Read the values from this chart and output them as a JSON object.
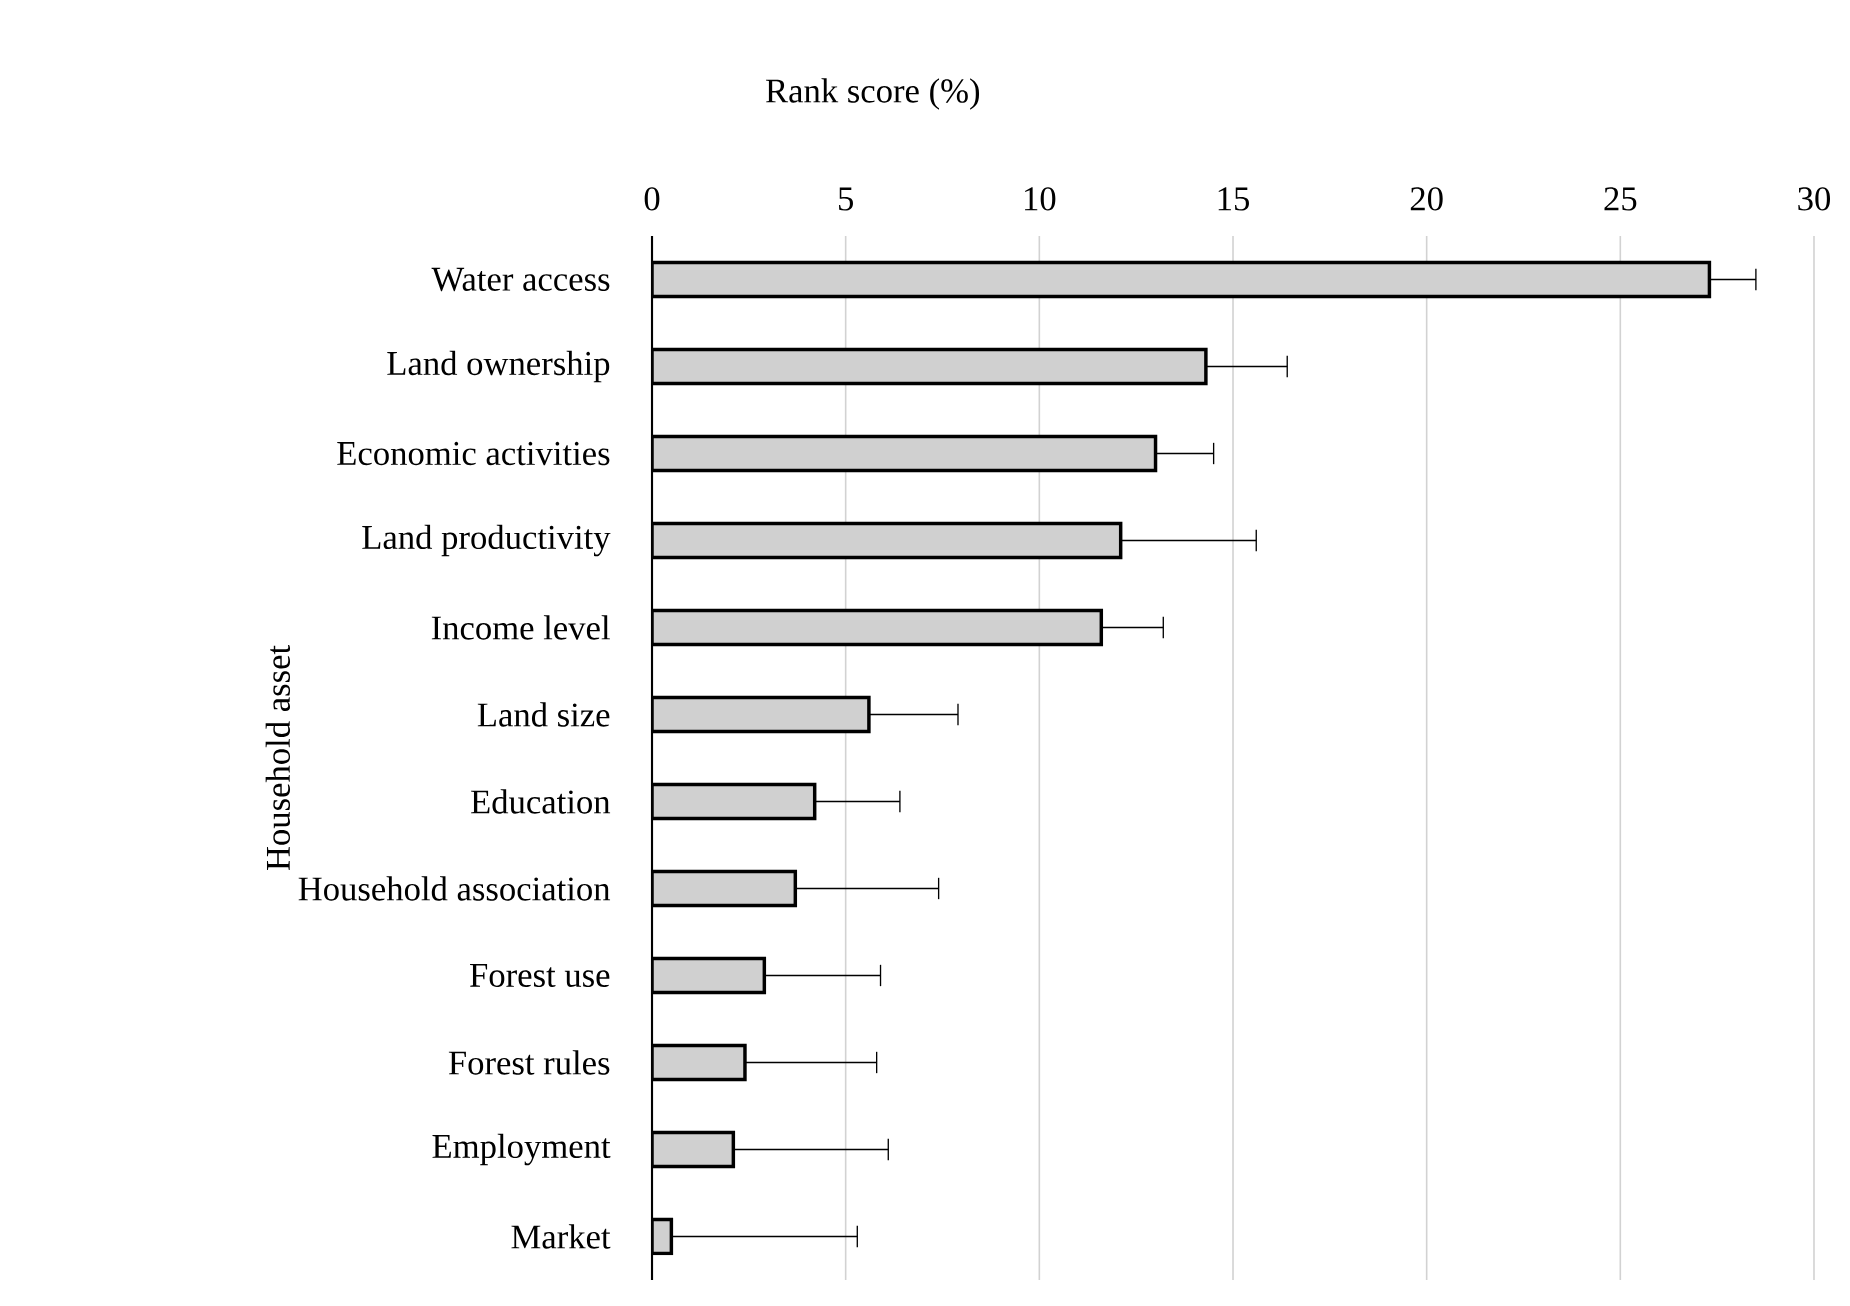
{
  "chart_data": {
    "type": "bar",
    "orientation": "horizontal",
    "xlabel": "Rank score (%)",
    "ylabel": "Household asset",
    "categories": [
      "Water access",
      "Land ownership",
      "Economic activities",
      "Land productivity",
      "Income level",
      "Land size",
      "Education",
      "Household association",
      "Forest use",
      "Forest rules",
      "Employment",
      "Market"
    ],
    "values": [
      27.3,
      14.3,
      13.0,
      12.1,
      11.6,
      5.6,
      4.2,
      3.7,
      2.9,
      2.4,
      2.1,
      0.5
    ],
    "errors": [
      [
        27.3,
        28.5
      ],
      [
        14.3,
        16.4
      ],
      [
        13.0,
        14.5
      ],
      [
        12.1,
        15.6
      ],
      [
        11.6,
        13.2
      ],
      [
        5.6,
        7.9
      ],
      [
        4.2,
        6.4
      ],
      [
        3.7,
        7.4
      ],
      [
        2.9,
        5.9
      ],
      [
        2.4,
        5.8
      ],
      [
        2.1,
        6.1
      ],
      [
        0.5,
        5.3
      ]
    ],
    "color": "#d0d0d0",
    "xlim": [
      0,
      30
    ],
    "xticks": [
      0,
      5,
      10,
      15,
      20,
      25,
      30
    ],
    "grid": "x"
  }
}
